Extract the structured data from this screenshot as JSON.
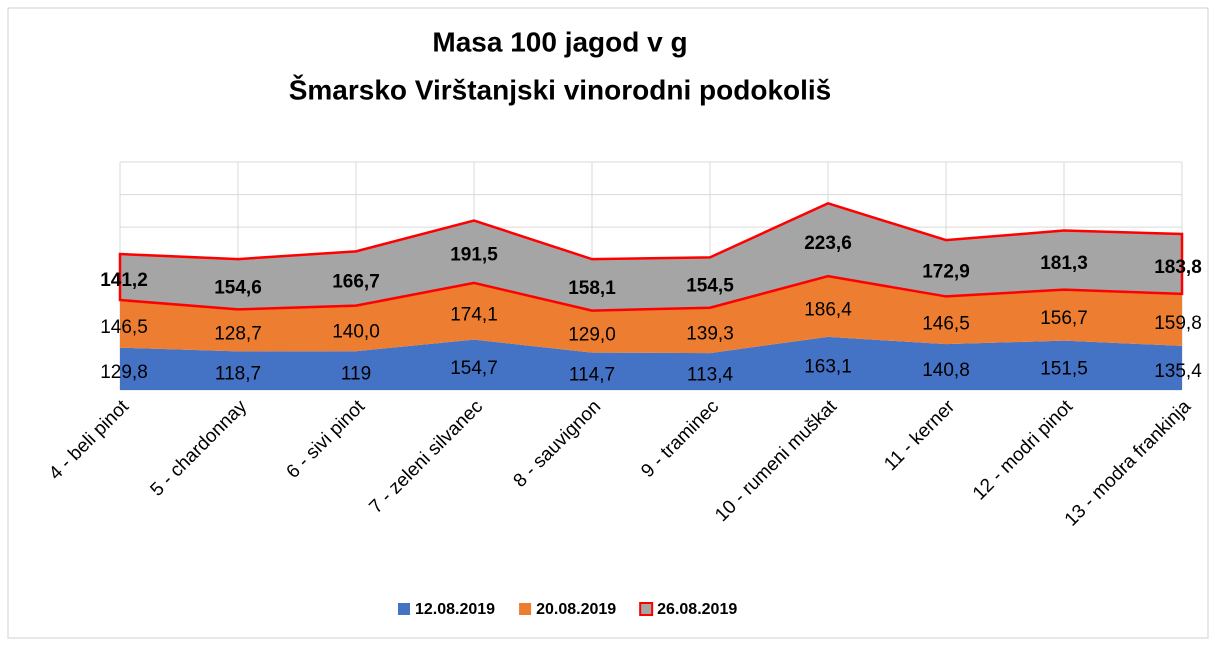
{
  "chart_data": {
    "type": "stacked_area",
    "title": "Masa 100 jagod v g",
    "subtitle": "Šmarsko Virštanjski vinorodni podokoliš",
    "categories": [
      "4 - beli pinot",
      "5 - chardonnay",
      "6 - sivi pinot",
      "7 - zeleni silvanec",
      "8 - sauvignon",
      "9 - traminec",
      "10 - rumeni muškat",
      "11 - kerner",
      "12 - modri pinot",
      "13 - modra frankinja"
    ],
    "series": [
      {
        "name": "12.08.2019",
        "color": "#4472c4",
        "values": [
          129.8,
          118.7,
          119,
          154.7,
          114.7,
          113.4,
          163.1,
          140.8,
          151.5,
          135.4
        ],
        "value_labels": [
          "129,8",
          "118,7",
          "119",
          "154,7",
          "114,7",
          "113,4",
          "163,1",
          "140,8",
          "151,5",
          "135,4"
        ]
      },
      {
        "name": "20.08.2019",
        "color": "#ed7d31",
        "values": [
          146.5,
          128.7,
          140.0,
          174.1,
          129.0,
          139.3,
          186.4,
          146.5,
          156.7,
          159.8
        ],
        "value_labels": [
          "146,5",
          "128,7",
          "140,0",
          "174,1",
          "129,0",
          "139,3",
          "186,4",
          "146,5",
          "156,7",
          "159,8"
        ]
      },
      {
        "name": "26.08.2019",
        "color": "#a5a5a5",
        "outline": "#ff0000",
        "values": [
          141.2,
          154.6,
          166.7,
          191.5,
          158.1,
          154.5,
          223.6,
          172.9,
          181.3,
          183.8
        ],
        "value_labels": [
          "141,2",
          "154,6",
          "166,7",
          "191,5",
          "158,1",
          "154,5",
          "223,6",
          "172,9",
          "181,3",
          "183,8"
        ]
      }
    ],
    "ylim": [
      0,
      700
    ],
    "yticks": [
      0,
      100,
      200,
      300,
      400,
      500,
      600,
      700
    ],
    "grid": true,
    "legend": "bottom"
  }
}
